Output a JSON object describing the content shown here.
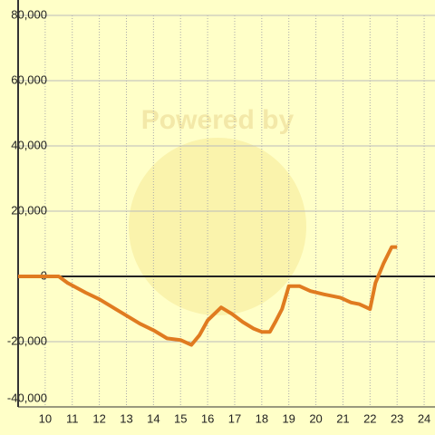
{
  "chart_data": {
    "type": "line",
    "watermark": "Powered by",
    "x": [
      9,
      10.5,
      10.83,
      11.5,
      12,
      12.5,
      13,
      13.5,
      14,
      14.5,
      15,
      15.4,
      15.7,
      16,
      16.5,
      16.9,
      17.3,
      17.7,
      18,
      18.3,
      18.5,
      18.75,
      19,
      19.4,
      19.8,
      20.3,
      20.9,
      21.3,
      21.6,
      22,
      22.2,
      22.5,
      22.8,
      23
    ],
    "series": [
      {
        "color": "#e07b20",
        "values": [
          0,
          0,
          -2000,
          -5000,
          -7000,
          -9500,
          -12000,
          -14500,
          -16500,
          -19000,
          -19500,
          -21000,
          -18000,
          -13500,
          -9500,
          -11500,
          -14000,
          -16000,
          -17000,
          -17000,
          -14000,
          -10000,
          -3000,
          -3000,
          -4500,
          -5500,
          -6500,
          -8000,
          -8500,
          -10000,
          -2000,
          4000,
          9000,
          9000
        ]
      }
    ],
    "xlim": [
      9,
      24.4
    ],
    "xticks": [
      10,
      11,
      12,
      13,
      14,
      15,
      16,
      17,
      18,
      19,
      20,
      21,
      22,
      23,
      24
    ],
    "ylim": [
      -40000,
      80000
    ],
    "yticks": [
      {
        "value": -40000,
        "label": "-40,000"
      },
      {
        "value": -20000,
        "label": "-20,000"
      },
      {
        "value": 0,
        "label": "0"
      },
      {
        "value": 20000,
        "label": "20,000"
      },
      {
        "value": 40000,
        "label": "40,000"
      },
      {
        "value": 60000,
        "label": "60,000"
      },
      {
        "value": 80000,
        "label": "80,000"
      }
    ],
    "grid": true
  }
}
